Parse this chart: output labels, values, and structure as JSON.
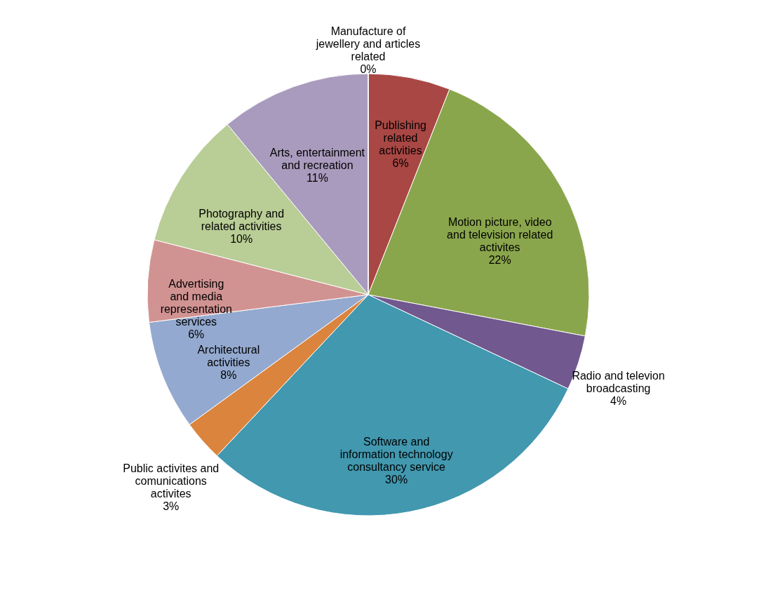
{
  "chart_data": {
    "type": "pie",
    "categories": [
      "Publishing related activities",
      "Motion picture, video and television related activites",
      "Radio and televion broadcasting",
      "Software and information technology consultancy service",
      "Public activites and comunications activites",
      "Architectural activities",
      "Advertising and media representation services",
      "Photography and related activities",
      "Arts, entertainment and recreation",
      "Manufacture of jewellery and articles related"
    ],
    "values": [
      6,
      22,
      4,
      30,
      3,
      8,
      6,
      10,
      11,
      0
    ],
    "value_labels": [
      "6%",
      "22%",
      "4%",
      "30%",
      "3%",
      "8%",
      "6%",
      "10%",
      "11%",
      "0%"
    ],
    "colors": [
      "#a94744",
      "#8aa64c",
      "#71588f",
      "#4198af",
      "#db843d",
      "#93a9cf",
      "#d19392",
      "#b9cd96",
      "#a99bbd",
      "#4572a7"
    ],
    "legend": false
  }
}
